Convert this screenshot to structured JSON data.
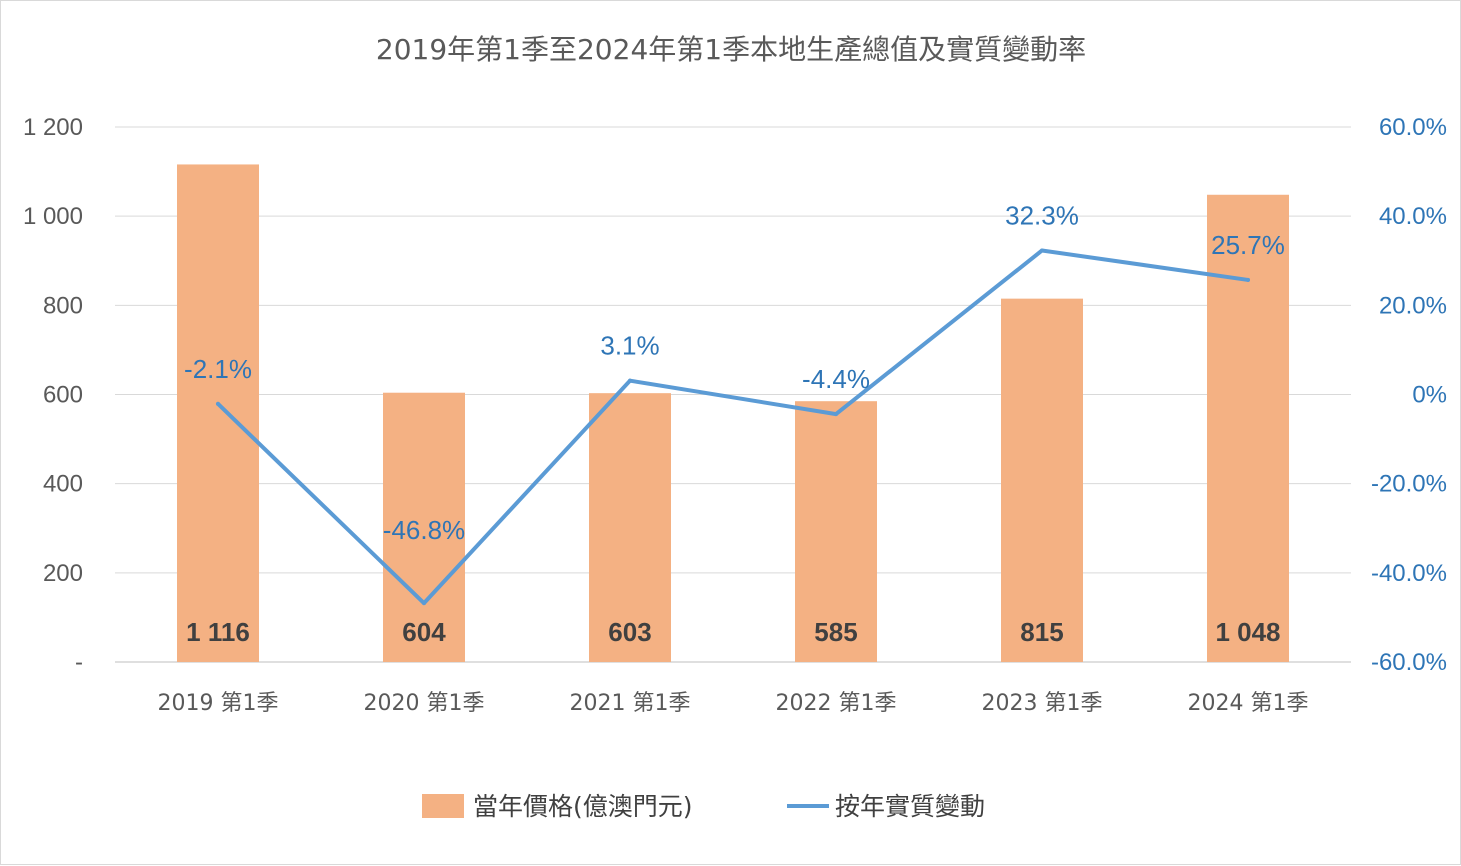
{
  "chart_data": {
    "type": "bar",
    "title": "2019年第1季至2024年第1季本地生產總值及實質變動率",
    "categories": [
      "2019 第1季",
      "2020 第1季",
      "2021 第1季",
      "2022 第1季",
      "2023 第1季",
      "2024 第1季"
    ],
    "series": [
      {
        "name": "當年價格(億澳門元)",
        "type": "bar",
        "axis": "left",
        "color": "#f4b183",
        "values": [
          1116,
          604,
          603,
          585,
          815,
          1048
        ],
        "labels": [
          "1 116",
          "604",
          "603",
          "585",
          "815",
          "1 048"
        ]
      },
      {
        "name": "按年實質變動",
        "type": "line",
        "axis": "right",
        "color": "#5b9bd5",
        "values": [
          -2.1,
          -46.8,
          3.1,
          -4.4,
          32.3,
          25.7
        ],
        "labels": [
          "-2.1%",
          "-46.8%",
          "3.1%",
          "-4.4%",
          "32.3%",
          "25.7%"
        ]
      }
    ],
    "y_left": {
      "ylim": [
        0,
        1200
      ],
      "ticks": [
        0,
        200,
        400,
        600,
        800,
        1000,
        1200
      ],
      "tick_labels": [
        "-",
        "200",
        "400",
        "600",
        "800",
        "1 000",
        "1 200"
      ]
    },
    "y_right": {
      "ylim": [
        -60,
        60
      ],
      "ticks": [
        -60,
        -40,
        -20,
        0,
        20,
        40,
        60
      ],
      "tick_labels": [
        "-60.0%",
        "-40.0%",
        "-20.0%",
        "0%",
        "20.0%",
        "40.0%",
        "60.0%"
      ],
      "color": "#2e75b6"
    },
    "grid": true,
    "legend_position": "bottom"
  }
}
